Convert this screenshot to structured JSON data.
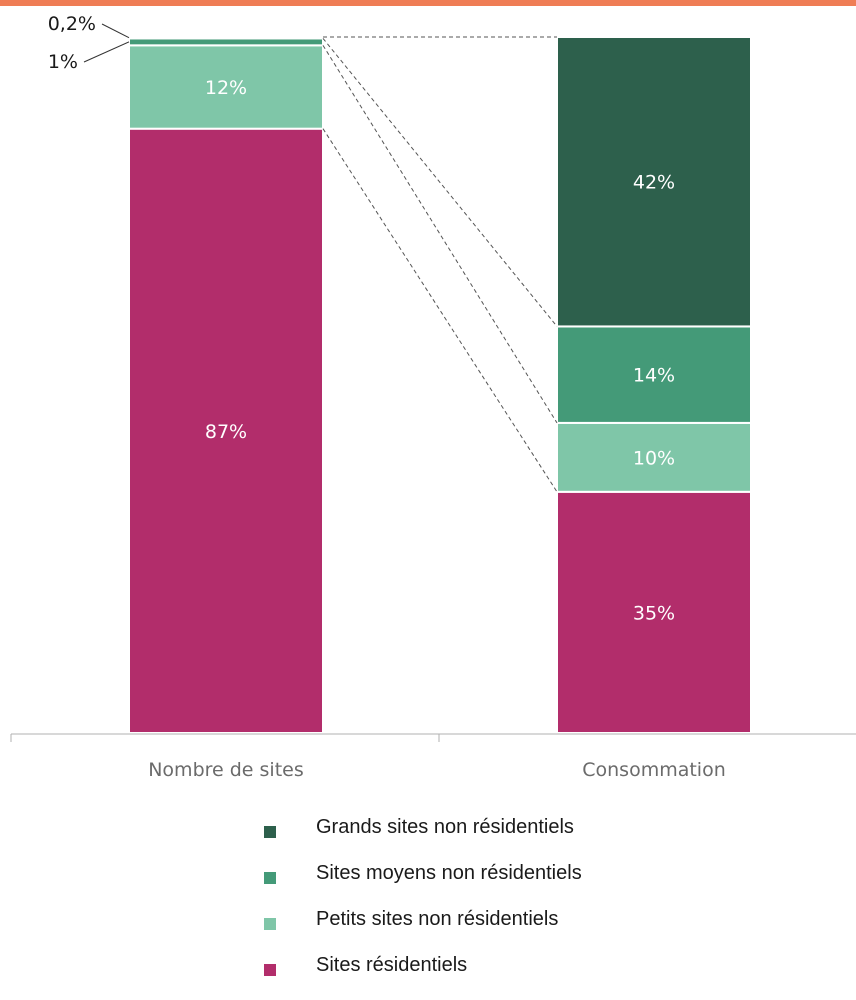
{
  "chart_data": {
    "type": "bar",
    "stacked": true,
    "title": "",
    "xlabel": "",
    "ylabel": "",
    "ylim": [
      0,
      100
    ],
    "categories": [
      "Nombre de sites",
      "Consommation"
    ],
    "series": [
      {
        "name": "Sites résidentiels",
        "color": "#b22d6b",
        "values": [
          87,
          35
        ],
        "labels": [
          "87%",
          "35%"
        ]
      },
      {
        "name": "Petits sites non résidentiels",
        "color": "#7fc6a8",
        "values": [
          12,
          10
        ],
        "labels": [
          "12%",
          "10%"
        ]
      },
      {
        "name": "Sites moyens non résidentiels",
        "color": "#449a78",
        "values": [
          1,
          14
        ],
        "labels": [
          "1%",
          "14%"
        ]
      },
      {
        "name": "Grands sites non résidentiels",
        "color": "#2d604c",
        "values": [
          0.2,
          42
        ],
        "labels": [
          "0,2%",
          "42%"
        ]
      }
    ],
    "legend_order": [
      3,
      2,
      1,
      0
    ],
    "legend_position": "bottom",
    "grid": false
  }
}
